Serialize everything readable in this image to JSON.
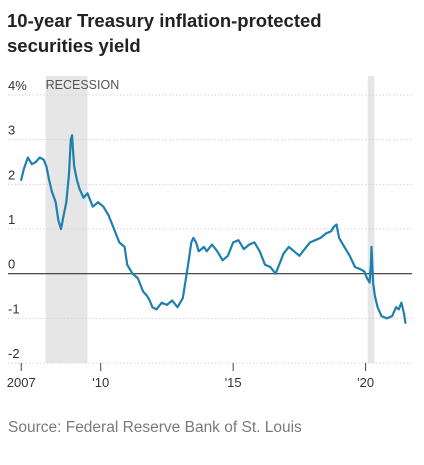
{
  "title": "10-year Treasury inflation-protected securities yield",
  "source": "Source: Federal Reserve Bank of St. Louis",
  "chart_data": {
    "type": "line",
    "title": "10-year Treasury inflation-protected securities yield",
    "xlabel": "",
    "ylabel": "",
    "ylim": [
      -2,
      4
    ],
    "xlim": [
      2006.5,
      2021.75
    ],
    "y_ticks": [
      {
        "value": 4,
        "label": "4%"
      },
      {
        "value": 3,
        "label": "3"
      },
      {
        "value": 2,
        "label": "2"
      },
      {
        "value": 1,
        "label": "1"
      },
      {
        "value": 0,
        "label": "0"
      },
      {
        "value": -1,
        "label": "-1"
      },
      {
        "value": -2,
        "label": "-2"
      }
    ],
    "x_ticks": [
      {
        "value": 2007,
        "label": "2007"
      },
      {
        "value": 2010,
        "label": "'10"
      },
      {
        "value": 2015,
        "label": "'15"
      },
      {
        "value": 2020,
        "label": "'20"
      }
    ],
    "grid": true,
    "recessions": [
      {
        "start": 2007.92,
        "end": 2009.5,
        "label": "RECESSION"
      },
      {
        "start": 2020.08,
        "end": 2020.33,
        "label": ""
      }
    ],
    "colors": {
      "line": "#1f7fae",
      "recession": "#e6e6e6",
      "grid": "#d4d4d4",
      "zero": "#333333"
    },
    "series": [
      {
        "name": "",
        "x": [
          2007.0,
          2007.1,
          2007.25,
          2007.4,
          2007.55,
          2007.7,
          2007.85,
          2007.95,
          2008.05,
          2008.15,
          2008.3,
          2008.4,
          2008.5,
          2008.6,
          2008.7,
          2008.8,
          2008.87,
          2008.92,
          2008.95,
          2009.0,
          2009.1,
          2009.2,
          2009.35,
          2009.5,
          2009.7,
          2009.9,
          2010.1,
          2010.3,
          2010.5,
          2010.7,
          2010.9,
          2011.0,
          2011.2,
          2011.4,
          2011.6,
          2011.75,
          2011.85,
          2011.95,
          2012.1,
          2012.3,
          2012.5,
          2012.7,
          2012.9,
          2013.1,
          2013.3,
          2013.42,
          2013.5,
          2013.6,
          2013.7,
          2013.8,
          2013.9,
          2014.0,
          2014.2,
          2014.4,
          2014.6,
          2014.8,
          2015.0,
          2015.2,
          2015.4,
          2015.6,
          2015.8,
          2016.0,
          2016.2,
          2016.4,
          2016.6,
          2016.8,
          2016.9,
          2017.1,
          2017.3,
          2017.5,
          2017.7,
          2017.9,
          2018.1,
          2018.3,
          2018.5,
          2018.7,
          2018.8,
          2018.9,
          2019.0,
          2019.2,
          2019.4,
          2019.6,
          2019.8,
          2019.95,
          2020.05,
          2020.15,
          2020.2,
          2020.22,
          2020.28,
          2020.35,
          2020.45,
          2020.6,
          2020.8,
          2021.0,
          2021.15,
          2021.25,
          2021.35,
          2021.45,
          2021.5
        ],
        "values": [
          2.1,
          2.35,
          2.6,
          2.45,
          2.5,
          2.6,
          2.55,
          2.4,
          2.1,
          1.85,
          1.6,
          1.2,
          1.0,
          1.3,
          1.6,
          2.2,
          3.0,
          3.1,
          2.8,
          2.4,
          2.1,
          1.9,
          1.7,
          1.8,
          1.5,
          1.6,
          1.5,
          1.3,
          1.0,
          0.7,
          0.6,
          0.2,
          0.0,
          -0.1,
          -0.4,
          -0.5,
          -0.6,
          -0.75,
          -0.8,
          -0.65,
          -0.7,
          -0.6,
          -0.75,
          -0.55,
          0.2,
          0.7,
          0.8,
          0.7,
          0.5,
          0.55,
          0.6,
          0.5,
          0.65,
          0.5,
          0.3,
          0.4,
          0.7,
          0.75,
          0.55,
          0.65,
          0.7,
          0.5,
          0.2,
          0.15,
          0.0,
          0.3,
          0.45,
          0.6,
          0.5,
          0.4,
          0.55,
          0.7,
          0.75,
          0.8,
          0.9,
          0.95,
          1.05,
          1.1,
          0.8,
          0.6,
          0.4,
          0.15,
          0.1,
          0.05,
          -0.1,
          -0.2,
          0.2,
          0.6,
          -0.2,
          -0.5,
          -0.75,
          -0.95,
          -1.0,
          -0.95,
          -0.75,
          -0.8,
          -0.65,
          -0.9,
          -1.1
        ]
      }
    ]
  }
}
